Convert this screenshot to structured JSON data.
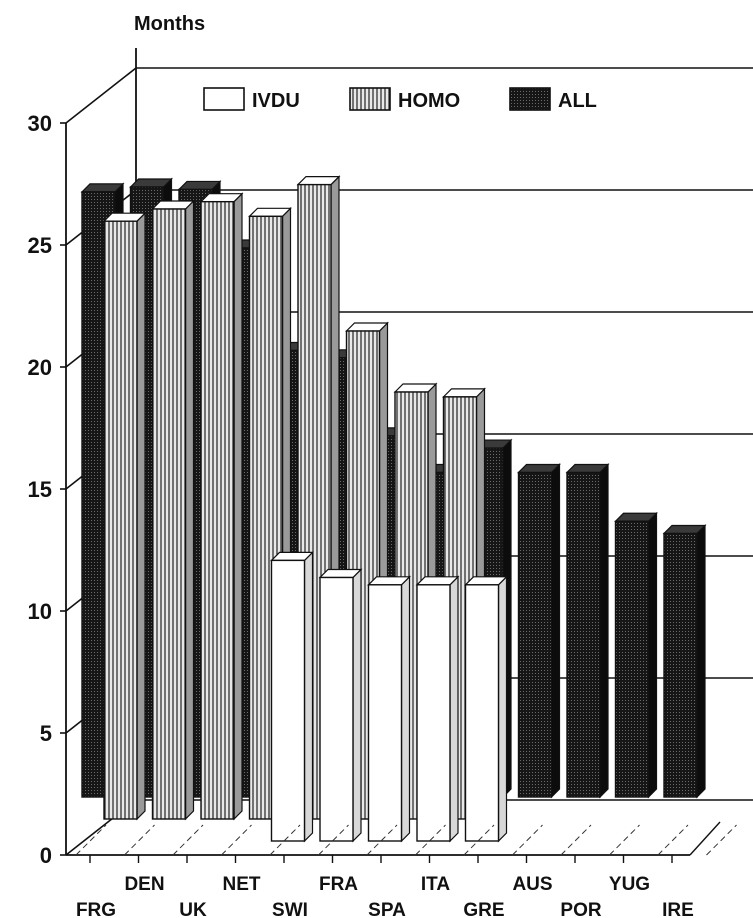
{
  "chart_data": {
    "type": "bar",
    "title": "",
    "ylabel": "Months",
    "xlabel": "",
    "ylim": [
      0,
      30
    ],
    "yticks": [
      0,
      5,
      10,
      15,
      20,
      25,
      30
    ],
    "categories": [
      "FRG",
      "DEN",
      "UK",
      "NET",
      "SWI",
      "FRA",
      "SPA",
      "ITA",
      "GRE",
      "AUS",
      "POR",
      "YUG",
      "IRE"
    ],
    "series": [
      {
        "name": "IVDU",
        "values": [
          null,
          null,
          null,
          11.5,
          10.8,
          10.5,
          10.5,
          10.5,
          null,
          null,
          null,
          null,
          null
        ]
      },
      {
        "name": "HOMO",
        "values": [
          24.5,
          25.0,
          25.3,
          24.7,
          26.0,
          20.0,
          17.5,
          17.3,
          null,
          null,
          null,
          null,
          null
        ]
      },
      {
        "name": "ALL",
        "values": [
          24.8,
          25.0,
          24.9,
          22.5,
          18.3,
          18.0,
          14.8,
          13.3,
          14.3,
          13.3,
          13.3,
          11.3,
          10.8
        ]
      }
    ],
    "legend_position": "top",
    "grid": true,
    "colors": {
      "IVDU": "#ffffff",
      "HOMO": "#bdbdbd",
      "ALL": "#1a1a1a"
    }
  }
}
